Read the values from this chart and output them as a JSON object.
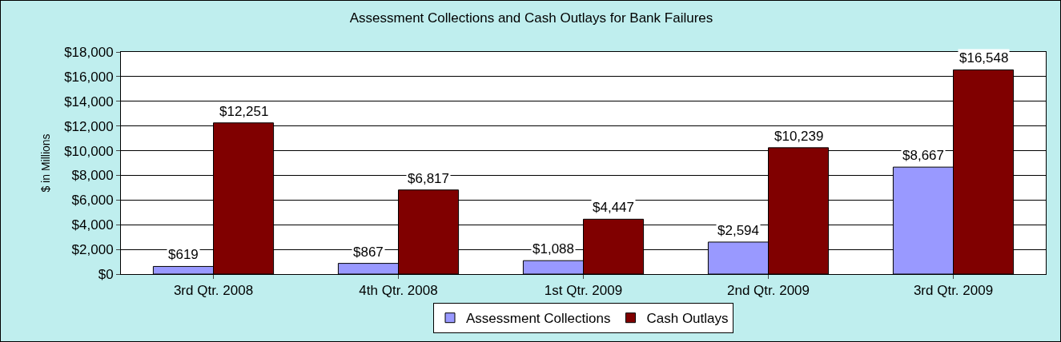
{
  "chart_data": {
    "type": "bar",
    "title": "Assessment Collections and Cash Outlays for Bank Failures",
    "ylabel": "$ in Millions",
    "categories": [
      "3rd Qtr. 2008",
      "4th Qtr. 2008",
      "1st Qtr. 2009",
      "2nd Qtr. 2009",
      "3rd Qtr. 2009"
    ],
    "series": [
      {
        "name": "Assessment Collections",
        "color": "#9999ff",
        "values": [
          619,
          867,
          1088,
          2594,
          8667
        ],
        "value_labels": [
          "$619",
          "$867",
          "$1,088",
          "$2,594",
          "$8,667"
        ]
      },
      {
        "name": "Cash Outlays",
        "color": "#800000",
        "values": [
          12251,
          6817,
          4447,
          10239,
          16548
        ],
        "value_labels": [
          "$12,251",
          "$6,817",
          "$4,447",
          "$10,239",
          "$16,548"
        ]
      }
    ],
    "ylim": [
      0,
      18000
    ],
    "yticks": [
      {
        "value": 0,
        "label": "$0"
      },
      {
        "value": 2000,
        "label": "$2,000"
      },
      {
        "value": 4000,
        "label": "$4,000"
      },
      {
        "value": 6000,
        "label": "$6,000"
      },
      {
        "value": 8000,
        "label": "$8,000"
      },
      {
        "value": 10000,
        "label": "$10,000"
      },
      {
        "value": 12000,
        "label": "$12,000"
      },
      {
        "value": 14000,
        "label": "$14,000"
      },
      {
        "value": 16000,
        "label": "$16,000"
      },
      {
        "value": 18000,
        "label": "$18,000"
      }
    ],
    "grid": "y",
    "legend": "bottom"
  }
}
